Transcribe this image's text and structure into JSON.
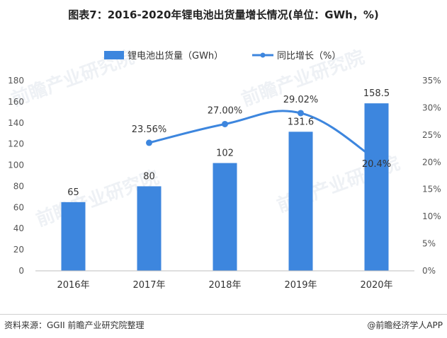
{
  "chart_data": {
    "type": "bar",
    "title": "图表7：2016-2020年锂电池出货量增长情况(单位：GWh，%)",
    "categories": [
      "2016年",
      "2017年",
      "2018年",
      "2019年",
      "2020年"
    ],
    "series": [
      {
        "name": "锂电池出货量（GWh）",
        "type": "bar",
        "axis": "left",
        "values": [
          65,
          80,
          102,
          131.6,
          158.5
        ],
        "labels": [
          "65",
          "80",
          "102",
          "131.6",
          "158.5"
        ],
        "color": "#3d86de"
      },
      {
        "name": "同比增长（%）",
        "type": "line",
        "axis": "right",
        "values": [
          null,
          23.56,
          27.0,
          29.02,
          20.4
        ],
        "labels": [
          "",
          "23.56%",
          "27.00%",
          "29.02%",
          "20.4%"
        ],
        "color": "#3d86de"
      }
    ],
    "y_left": {
      "min": 0,
      "max": 180,
      "ticks": [
        "0",
        "20",
        "40",
        "60",
        "80",
        "100",
        "120",
        "140",
        "160",
        "180"
      ]
    },
    "y_right": {
      "min": 0,
      "max": 35,
      "ticks": [
        "0%",
        "5%",
        "10%",
        "15%",
        "20%",
        "25%",
        "30%",
        "35%"
      ]
    },
    "legend_position": "top-center",
    "grid": false
  },
  "footer": {
    "source": "资料来源：GGII 前瞻产业研究院整理",
    "brand": "@前瞻经济学人APP"
  },
  "watermark": "前瞻产业研究院"
}
